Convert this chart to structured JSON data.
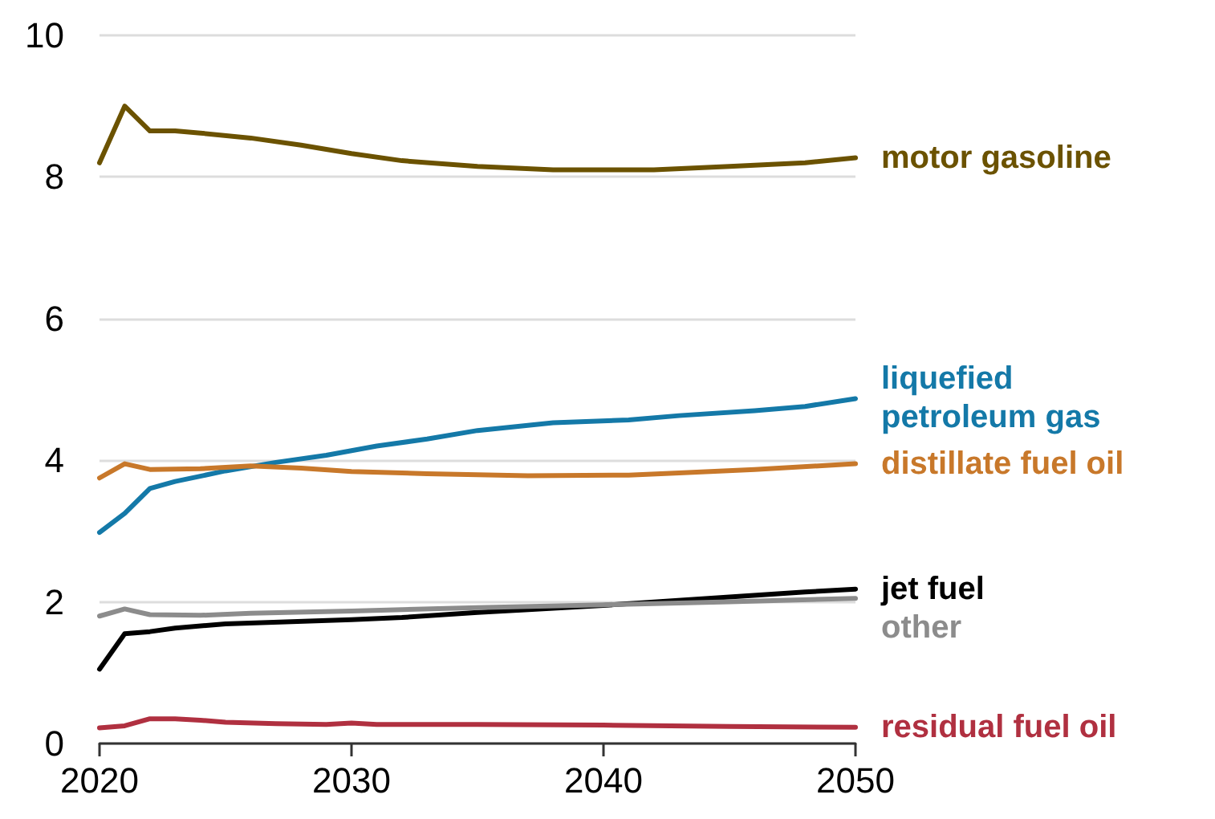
{
  "chart_data": {
    "type": "line",
    "xlim": [
      2020,
      2050
    ],
    "xticks": [
      2020,
      2030,
      2040,
      2050
    ],
    "ylim": [
      0,
      10
    ],
    "yticks": [
      0,
      2,
      4,
      6,
      8,
      10
    ],
    "grid": "y",
    "legend": false,
    "marker": "none",
    "line_style": "solid",
    "series": [
      {
        "name": "motor gasoline",
        "color": "#6b5200",
        "x": [
          2020,
          2021,
          2022,
          2023,
          2024,
          2026,
          2028,
          2030,
          2032,
          2035,
          2038,
          2042,
          2045,
          2048,
          2050
        ],
        "values": [
          8.2,
          9.0,
          8.65,
          8.65,
          8.62,
          8.55,
          8.45,
          8.33,
          8.23,
          8.15,
          8.1,
          8.1,
          8.15,
          8.2,
          8.27
        ]
      },
      {
        "name": "liquefied\npetroleum gas",
        "color": "#1479a8",
        "x": [
          2020,
          2021,
          2022,
          2023,
          2025,
          2027,
          2029,
          2031,
          2033,
          2035,
          2038,
          2041,
          2043,
          2046,
          2048,
          2050
        ],
        "values": [
          2.98,
          3.25,
          3.6,
          3.7,
          3.85,
          3.97,
          4.07,
          4.2,
          4.3,
          4.42,
          4.53,
          4.57,
          4.63,
          4.7,
          4.76,
          4.87
        ]
      },
      {
        "name": "distillate fuel oil",
        "color": "#c8782a",
        "x": [
          2020,
          2021,
          2022,
          2024,
          2026,
          2028,
          2030,
          2033,
          2037,
          2041,
          2043,
          2046,
          2050
        ],
        "values": [
          3.75,
          3.95,
          3.87,
          3.88,
          3.92,
          3.89,
          3.84,
          3.81,
          3.78,
          3.79,
          3.82,
          3.87,
          3.95
        ]
      },
      {
        "name": "jet fuel",
        "color": "#000000",
        "x": [
          2020,
          2021,
          2022,
          2023,
          2025,
          2030,
          2032,
          2035,
          2040,
          2045,
          2048,
          2050
        ],
        "values": [
          1.05,
          1.55,
          1.58,
          1.63,
          1.69,
          1.75,
          1.78,
          1.85,
          1.95,
          2.07,
          2.14,
          2.18
        ]
      },
      {
        "name": "other",
        "color": "#8c8c8c",
        "x": [
          2020,
          2021,
          2022,
          2024,
          2026,
          2030,
          2035,
          2040,
          2045,
          2050
        ],
        "values": [
          1.8,
          1.9,
          1.82,
          1.81,
          1.84,
          1.87,
          1.92,
          1.96,
          2.0,
          2.05
        ]
      },
      {
        "name": "residual fuel oil",
        "color": "#b03040",
        "x": [
          2020,
          2021,
          2022,
          2023,
          2024,
          2025,
          2027,
          2029,
          2030,
          2031,
          2035,
          2040,
          2045,
          2050
        ],
        "values": [
          0.22,
          0.25,
          0.35,
          0.35,
          0.33,
          0.3,
          0.28,
          0.27,
          0.29,
          0.27,
          0.27,
          0.26,
          0.24,
          0.23
        ]
      }
    ]
  }
}
